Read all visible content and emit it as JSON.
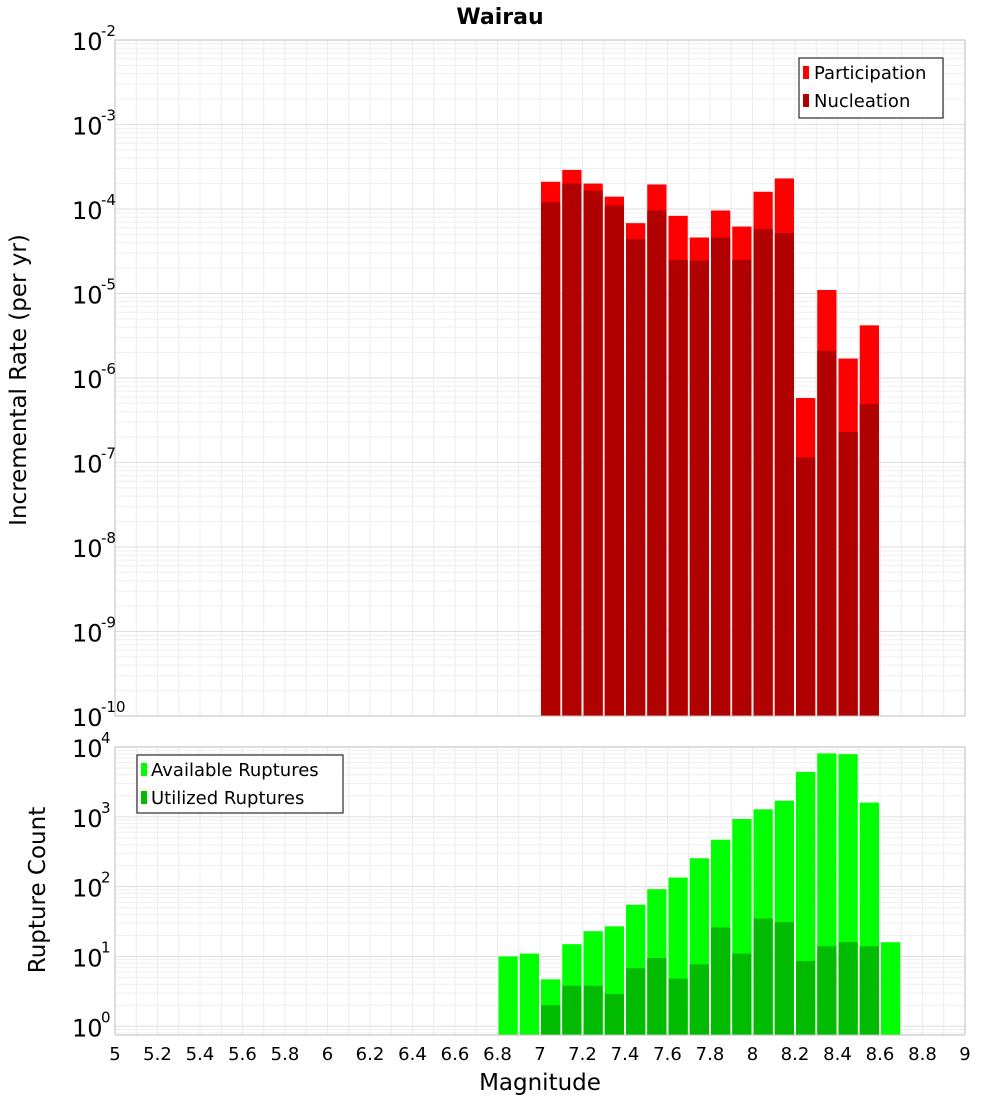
{
  "title": "Wairau",
  "xlabel": "Magnitude",
  "x_ticks": [
    "5",
    "5.2",
    "5.4",
    "5.6",
    "5.8",
    "6",
    "6.2",
    "6.4",
    "6.6",
    "6.8",
    "7",
    "7.2",
    "7.4",
    "7.6",
    "7.8",
    "8",
    "8.2",
    "8.4",
    "8.6",
    "8.8",
    "9"
  ],
  "chart_data": [
    {
      "type": "bar",
      "ylabel": "Incremental Rate (per yr)",
      "yscale": "log",
      "xlim": [
        5,
        9
      ],
      "ylim": [
        1e-10,
        0.01
      ],
      "y_tick_exponents": [
        "-2",
        "-3",
        "-4",
        "-5",
        "-6",
        "-7",
        "-8",
        "-9",
        "-10"
      ],
      "legend": {
        "position": "top-right"
      },
      "bin_width": 0.1,
      "x": [
        7.05,
        7.15,
        7.25,
        7.35,
        7.45,
        7.55,
        7.65,
        7.75,
        7.85,
        7.95,
        8.05,
        8.15,
        8.25,
        8.35,
        8.45,
        8.55
      ],
      "series": [
        {
          "name": "Participation",
          "color": "#ff0000",
          "values": [
            0.00021,
            0.00029,
            0.0002,
            0.00014,
            6.8e-05,
            0.000195,
            8.3e-05,
            4.6e-05,
            9.6e-05,
            6.2e-05,
            0.00016,
            0.00023,
            5.8e-07,
            1.1e-05,
            1.7e-06,
            4.2e-06
          ]
        },
        {
          "name": "Nucleation",
          "color": "#b00000",
          "values": [
            0.00012,
            0.0002,
            0.000165,
            0.00011,
            4.4e-05,
            9.6e-05,
            2.5e-05,
            2.45e-05,
            4.6e-05,
            2.5e-05,
            5.8e-05,
            5.2e-05,
            1.15e-07,
            2.1e-06,
            2.3e-07,
            4.9e-07
          ]
        }
      ]
    },
    {
      "type": "bar",
      "ylabel": "Rupture Count",
      "yscale": "log",
      "xlim": [
        5,
        9
      ],
      "ylim": [
        0.75,
        10000
      ],
      "y_tick_exponents": [
        "4",
        "3",
        "2",
        "1",
        "0"
      ],
      "legend": {
        "position": "top-left"
      },
      "bin_width": 0.1,
      "x": [
        6.85,
        6.95,
        7.05,
        7.15,
        7.25,
        7.35,
        7.45,
        7.55,
        7.65,
        7.75,
        7.85,
        7.95,
        8.05,
        8.15,
        8.25,
        8.35,
        8.45,
        8.55,
        8.65
      ],
      "series": [
        {
          "name": "Available Ruptures",
          "color": "#00ff00",
          "values": [
            10,
            11,
            4.7,
            15,
            23,
            27,
            55,
            92,
            135,
            255,
            470,
            930,
            1280,
            1700,
            4400,
            8100,
            7900,
            1600,
            16
          ]
        },
        {
          "name": "Utilized Ruptures",
          "color": "#00bb00",
          "values": [
            0,
            0,
            2,
            3.8,
            3.8,
            2.9,
            6.8,
            9.5,
            4.8,
            7.7,
            26,
            11,
            35,
            31,
            8.6,
            14,
            16,
            14,
            0
          ]
        }
      ]
    }
  ]
}
